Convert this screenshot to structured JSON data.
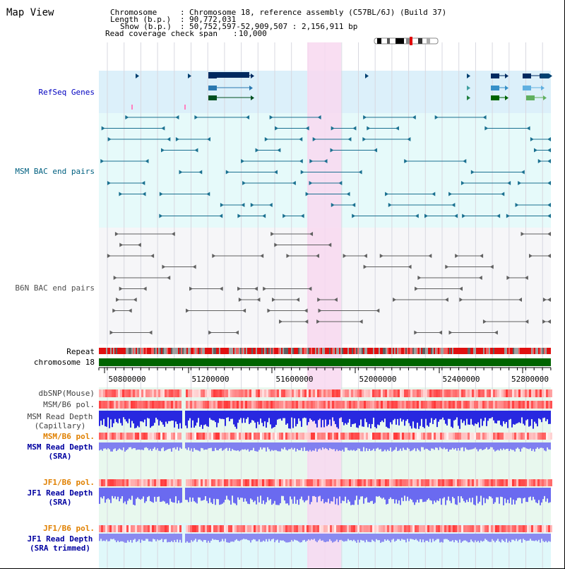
{
  "header": {
    "title": "Map View",
    "chromosome_key": "Chromosome",
    "chromosome_value": "Chromosome 18, reference assembly (C57BL/6J) (Build 37)",
    "length_key": "Length (b.p.)",
    "length_value": "90,772,031",
    "show_key": "Show (b.p.)",
    "show_value": "50,752,597-52,909,507 : 2,156,911 bp",
    "coverage_key": "Read coverage check span",
    "coverage_value": "10,000"
  },
  "tracks": {
    "refseq": "RefSeq Genes",
    "msm_bac": "MSM BAC end pairs",
    "b6n_bac": "B6N BAC end pairs",
    "repeat": "Repeat",
    "chromosome": "chromosome 18",
    "dbsnp": "dbSNP(Mouse)",
    "msm_b6_pol_1": "MSM/B6 pol.",
    "msm_read_depth_cap_1": "MSM Read Depth",
    "msm_read_depth_cap_2": "(Capillary)",
    "msm_b6_pol_2": "MSM/B6 pol.",
    "msm_read_depth_sra_1": "MSM Read Depth",
    "msm_read_depth_sra_2": "(SRA)",
    "jf1_b6_pol_1": "JF1/B6 pol.",
    "jf1_read_depth_sra_1": "JF1 Read Depth",
    "jf1_read_depth_sra_2": "(SRA)",
    "jf1_b6_pol_2": "JF1/B6 pol.",
    "jf1_read_depth_trim_1": "JF1 Read Depth",
    "jf1_read_depth_trim_2": "(SRA trimmed)"
  },
  "axis": {
    "ticks": [
      "50800000",
      "51200000",
      "51600000",
      "52000000",
      "52400000",
      "52800000"
    ]
  },
  "colors": {
    "refseq_bg": "#dcf0fa",
    "bac_bg": "#e6fafa",
    "highlight": "#f8d8f0",
    "msm_label": "#006080",
    "refseq_label": "#0000c0",
    "pol_label": "#e08000",
    "depth_label": "#0000a0",
    "chromosome_green": "#006400"
  }
}
